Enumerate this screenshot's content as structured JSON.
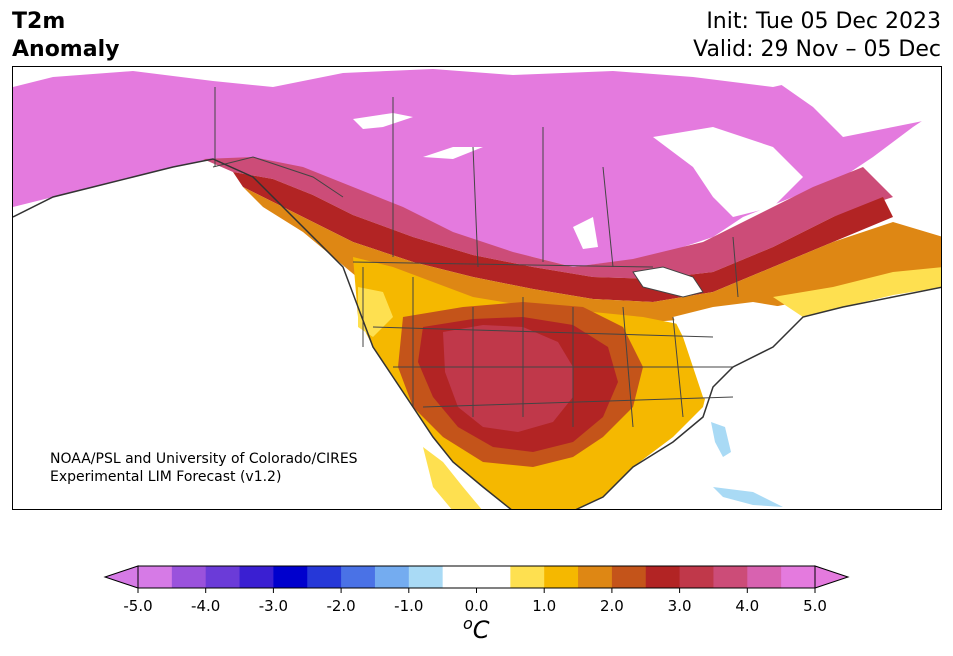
{
  "header": {
    "variable": "T2m",
    "quantity": "Anomaly",
    "init": "Init: Tue 05 Dec 2023",
    "valid": "Valid: 29 Nov – 05 Dec"
  },
  "credit": {
    "line1": "NOAA/PSL and University of Colorado/CIRES",
    "line2": "Experimental LIM Forecast (v1.2)"
  },
  "colorbar": {
    "ticks": [
      "-5.0",
      "-4.0",
      "-3.0",
      "-2.0",
      "-1.0",
      "0.0",
      "1.0",
      "2.0",
      "3.0",
      "4.0",
      "5.0"
    ],
    "unit_base": "C",
    "unit_sup": "o",
    "colors": [
      "#d67ae6",
      "#9a52dc",
      "#6b3bd8",
      "#3a1fd2",
      "#0000cd",
      "#2638d8",
      "#4a72e6",
      "#74acf0",
      "#a9daf5",
      "#ffffff",
      "#ffffff",
      "#fee050",
      "#f5b800",
      "#de8714",
      "#c4541a",
      "#b22424",
      "#c0384a",
      "#cc4c78",
      "#d862b0",
      "#e47ade"
    ]
  },
  "legend_ranges": {
    "cold_min": -5.0,
    "warm_max": 5.0,
    "step": 0.5
  },
  "anomaly_fields": {
    "canada_north": "#e47ade",
    "canada_south_band": "#cc4c78",
    "great_plains_core": "#c0384a",
    "plains_ring": "#b22424",
    "west_orange": "#de8714",
    "west_yellow": "#f5b800",
    "light_yellow": "#fee050",
    "east_white": "#ffffff",
    "florida_blue": "#a9daf5"
  }
}
